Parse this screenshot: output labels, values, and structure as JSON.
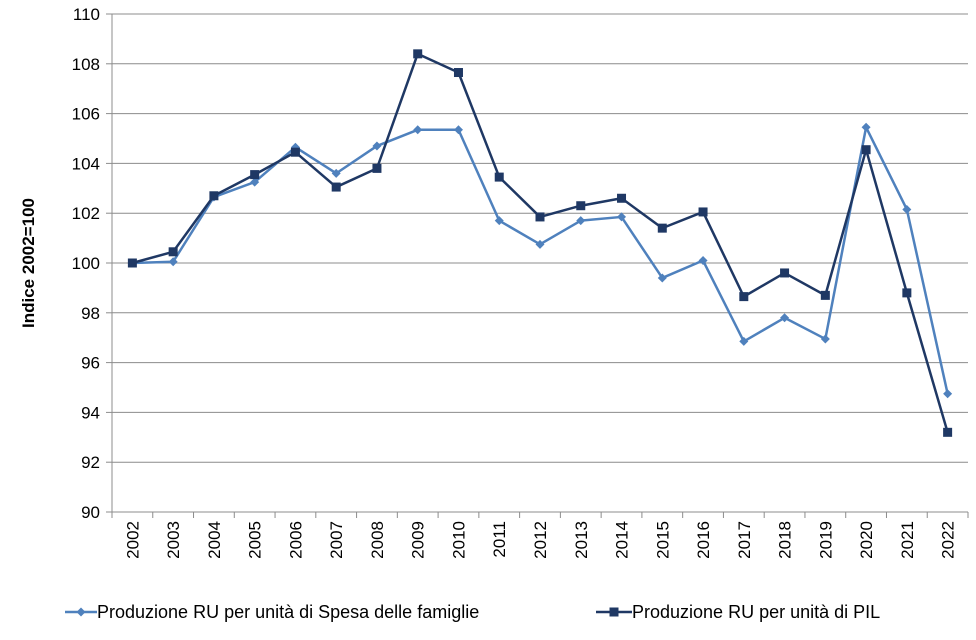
{
  "chart_data": {
    "type": "line",
    "title": "",
    "xlabel": "",
    "ylabel": "Indice 2002=100",
    "ylim": [
      90,
      110
    ],
    "ytick_step": 2,
    "grid": "horizontal",
    "legend_placement": "bottom",
    "categories": [
      "2002",
      "2003",
      "2004",
      "2005",
      "2006",
      "2007",
      "2008",
      "2009",
      "2010",
      "2011",
      "2012",
      "2013",
      "2014",
      "2015",
      "2016",
      "2017",
      "2018",
      "2019",
      "2020",
      "2021",
      "2022"
    ],
    "series": [
      {
        "name": "Produzione RU per unità di Spesa delle famiglie",
        "color": "#4f81bd",
        "marker": "diamond",
        "values": [
          100.0,
          100.05,
          102.65,
          103.25,
          104.65,
          103.6,
          104.7,
          105.35,
          105.35,
          101.7,
          100.75,
          101.7,
          101.85,
          99.4,
          100.1,
          96.85,
          97.8,
          96.95,
          105.45,
          102.15,
          94.75
        ]
      },
      {
        "name": "Produzione RU per unità di PIL",
        "color": "#1f3864",
        "marker": "square",
        "values": [
          100.0,
          100.45,
          102.7,
          103.55,
          104.45,
          103.05,
          103.8,
          108.4,
          107.65,
          103.45,
          101.85,
          102.3,
          102.6,
          101.4,
          102.05,
          98.65,
          99.6,
          98.7,
          104.55,
          98.8,
          93.2
        ]
      }
    ]
  }
}
